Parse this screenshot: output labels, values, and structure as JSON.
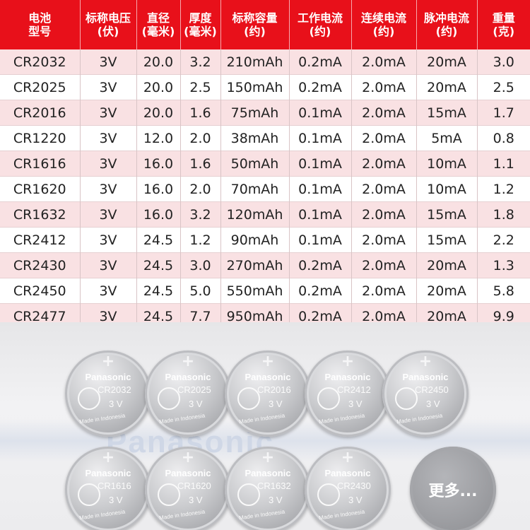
{
  "table": {
    "headers": [
      [
        "电池",
        "型号"
      ],
      [
        "标称电压",
        "(伏)"
      ],
      [
        "直径",
        "(毫米)"
      ],
      [
        "厚度",
        "(毫米)"
      ],
      [
        "标称容量",
        "(约)"
      ],
      [
        "工作电流",
        "(约)"
      ],
      [
        "连续电流",
        "(约)"
      ],
      [
        "脉冲电流",
        "(约)"
      ],
      [
        "重量",
        "(克)"
      ]
    ],
    "rows": [
      [
        "CR2032",
        "3V",
        "20.0",
        "3.2",
        "210mAh",
        "0.2mA",
        "2.0mA",
        "20mA",
        "3.0"
      ],
      [
        "CR2025",
        "3V",
        "20.0",
        "2.5",
        "150mAh",
        "0.2mA",
        "2.0mA",
        "20mA",
        "2.5"
      ],
      [
        "CR2016",
        "3V",
        "20.0",
        "1.6",
        "75mAh",
        "0.1mA",
        "2.0mA",
        "15mA",
        "1.7"
      ],
      [
        "CR1220",
        "3V",
        "12.0",
        "2.0",
        "38mAh",
        "0.1mA",
        "2.0mA",
        "5mA",
        "0.8"
      ],
      [
        "CR1616",
        "3V",
        "16.0",
        "1.6",
        "50mAh",
        "0.1mA",
        "2.0mA",
        "10mA",
        "1.1"
      ],
      [
        "CR1620",
        "3V",
        "16.0",
        "2.0",
        "70mAh",
        "0.1mA",
        "2.0mA",
        "10mA",
        "1.2"
      ],
      [
        "CR1632",
        "3V",
        "16.0",
        "3.2",
        "120mAh",
        "0.1mA",
        "2.0mA",
        "15mA",
        "1.8"
      ],
      [
        "CR2412",
        "3V",
        "24.5",
        "1.2",
        "90mAh",
        "0.1mA",
        "2.0mA",
        "15mA",
        "2.2"
      ],
      [
        "CR2430",
        "3V",
        "24.5",
        "3.0",
        "270mAh",
        "0.2mA",
        "2.0mA",
        "20mA",
        "1.3"
      ],
      [
        "CR2450",
        "3V",
        "24.5",
        "5.0",
        "550mAh",
        "0.2mA",
        "2.0mA",
        "20mA",
        "5.8"
      ],
      [
        "CR2477",
        "3V",
        "24.5",
        "7.7",
        "950mAh",
        "0.2mA",
        "2.0mA",
        "20mA",
        "9.9"
      ]
    ]
  },
  "photo": {
    "background_brand": "Panasonic",
    "coin_brand": "Panasonic",
    "coin_voltage": "3 V",
    "coin_made": "Made in Indonesia",
    "coin_icon": "battery-safety-person-icon",
    "coins": [
      "CR2032",
      "CR2025",
      "CR2016",
      "CR2412",
      "CR2450",
      "CR1616",
      "CR1620",
      "CR1632",
      "CR2430"
    ],
    "more_label": "更多..."
  },
  "colors": {
    "header_red": "#e8101a",
    "row_pink": "#f9e1e3",
    "coin_silver": "#b8b9bd"
  }
}
